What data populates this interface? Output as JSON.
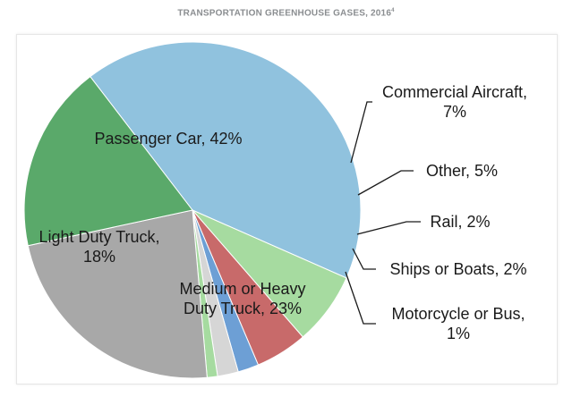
{
  "header": {
    "title": "TRANSPORTATION GREENHOUSE GASES, 2016",
    "footnote_mark": "4"
  },
  "chart_data": {
    "type": "pie",
    "title": "TRANSPORTATION GREENHOUSE GASES, 2016",
    "slices": [
      {
        "lines": [
          "Passenger Car, 42%"
        ],
        "value": 42,
        "color": "#90c2de"
      },
      {
        "lines": [
          "Commercial Aircraft,",
          "7%"
        ],
        "value": 7,
        "color": "#a6dba0"
      },
      {
        "lines": [
          "Other, 5%"
        ],
        "value": 5,
        "color": "#c86a6a"
      },
      {
        "lines": [
          "Rail, 2%"
        ],
        "value": 2,
        "color": "#6d9fd5"
      },
      {
        "lines": [
          "Ships or Boats, 2%"
        ],
        "value": 2,
        "color": "#d6d6d6"
      },
      {
        "lines": [
          "Motorcycle or Bus,",
          "1%"
        ],
        "value": 1,
        "color": "#a6dba0"
      },
      {
        "lines": [
          "Medium or Heavy",
          "Duty Truck, 23%"
        ],
        "value": 23,
        "color": "#a8a8a8"
      },
      {
        "lines": [
          "Light Duty Truck,",
          "18%"
        ],
        "value": 18,
        "color": "#5aa96a"
      }
    ]
  }
}
